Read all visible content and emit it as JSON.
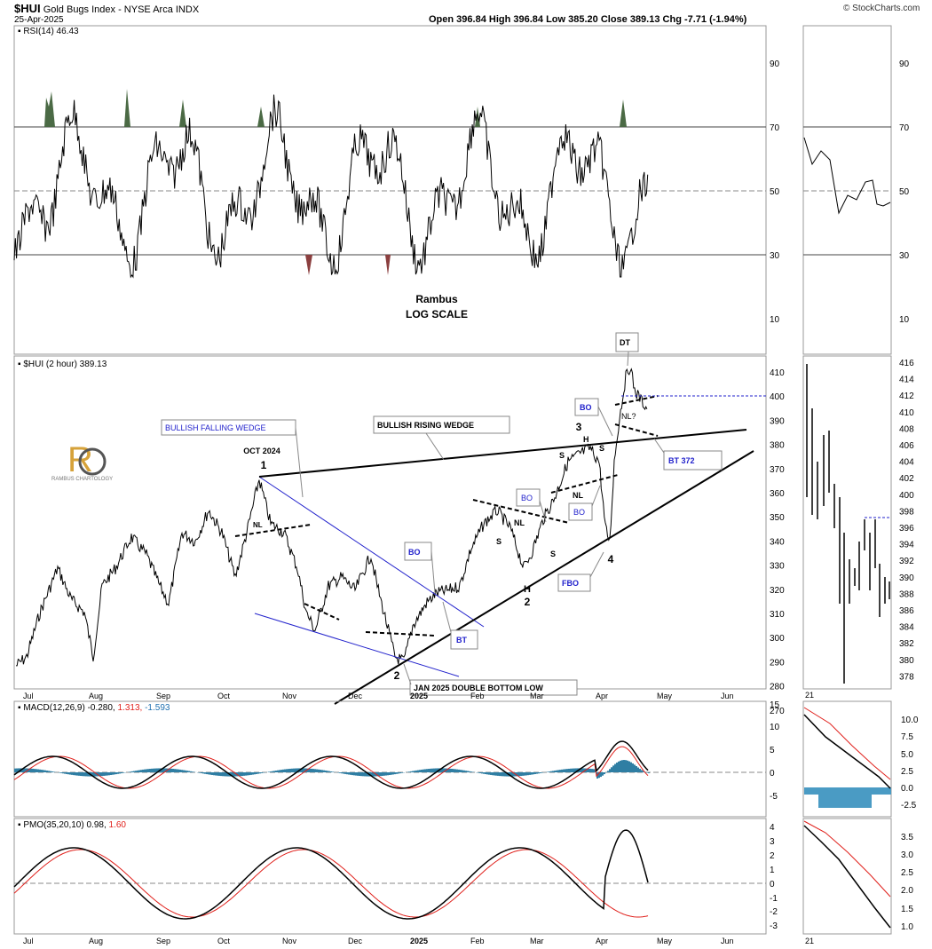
{
  "header": {
    "symbol": "$HUI",
    "name": "Gold Bugs Index - NYSE Arca  INDX",
    "date": "25-Apr-2025",
    "ohlc": "Open 396.84  High 396.84  Low 385.20  Close 389.13  Chg -7.71 (-1.94%)",
    "brand": "© StockCharts.com"
  },
  "rsi": {
    "label": "RSI(14) 46.43",
    "ticks": [
      "90",
      "70",
      "50",
      "30",
      "10"
    ],
    "author": "Rambus",
    "scale": "LOG SCALE"
  },
  "price": {
    "label": "$HUI (2 hour) 389.13",
    "ticks_main": [
      "410",
      "400",
      "390",
      "380",
      "370",
      "360",
      "350",
      "340",
      "330",
      "320",
      "310",
      "300",
      "290",
      "280",
      "270"
    ],
    "ticks_side": [
      "416",
      "414",
      "412",
      "410",
      "408",
      "406",
      "404",
      "402",
      "400",
      "398",
      "396",
      "394",
      "392",
      "390",
      "388",
      "386",
      "384",
      "382",
      "380",
      "378"
    ],
    "logo_text": "RAMBUS CHARTOLOGY"
  },
  "annotations": {
    "falling_wedge": "BULLISH FALLING WEDGE",
    "rising_wedge": "BULLISH  RISING WEDGE",
    "oct": "OCT 2024",
    "one": "1",
    "two": "2",
    "two_b": "2",
    "three": "3",
    "four": "4",
    "h": "H",
    "h2": "H",
    "s1": "S",
    "s2": "S",
    "s3": "S",
    "s4": "S",
    "nl1": "NL",
    "nl2": "NL",
    "nl3": "NL",
    "nl4": "NL?",
    "bo1": "BO",
    "bo2": "BO",
    "bo3": "BO",
    "bo4": "BO",
    "bt": "BT",
    "bt372": "BT 372",
    "fbo": "FBO",
    "dt": "DT",
    "jan_low": "JAN 2025 DOUBLE BOTTOM LOW"
  },
  "months": [
    "Jul",
    "Aug",
    "Sep",
    "Oct",
    "Nov",
    "Dec",
    "2025",
    "Feb",
    "Mar",
    "Apr",
    "May",
    "Jun"
  ],
  "months_bottom": [
    "Jul",
    "Aug",
    "Sep",
    "Oct",
    "Nov",
    "Dec",
    "2025",
    "Feb",
    "Mar",
    "Apr",
    "May",
    "Jun"
  ],
  "side_label": "21",
  "macd": {
    "label": "MACD(12,26,9)",
    "v1": "-0.280,",
    "v2": "1.313,",
    "v3": "-1.593",
    "ticks": [
      "15",
      "10",
      "5",
      "0",
      "-5"
    ],
    "side_ticks": [
      "10.0",
      "7.5",
      "5.0",
      "2.5",
      "0.0",
      "-2.5"
    ]
  },
  "pmo": {
    "label": "PMO(35,20,10)",
    "v1": "0.98,",
    "v2": "1.60",
    "ticks": [
      "4",
      "3",
      "2",
      "1",
      "0",
      "-1",
      "-2",
      "-3"
    ],
    "side_ticks": [
      "3.5",
      "3.0",
      "2.5",
      "2.0",
      "1.5",
      "1.0"
    ]
  },
  "colors": {
    "wedge_blue": "#2222cc",
    "signal_red": "#e0201b",
    "histogram": "#2f7ea3",
    "rsi_ob": "#4b6a45",
    "rsi_os": "#8b3f3f",
    "pmo_blue": "#1e6fb0"
  },
  "chart_data": {
    "type": "line",
    "title": "$HUI Gold Bugs Index - NYSE Arca INDX",
    "x_range": [
      "Jul 2024",
      "Jun 2025"
    ],
    "y_scale": "log",
    "ylim": [
      265,
      416
    ],
    "last_close": 389.13,
    "open": 396.84,
    "high": 396.84,
    "low": 385.2,
    "change": -7.71,
    "change_pct": -1.94,
    "rsi14": 46.43,
    "macd": [
      -0.28,
      1.313,
      -1.593
    ],
    "pmo": [
      0.98,
      1.6
    ]
  }
}
